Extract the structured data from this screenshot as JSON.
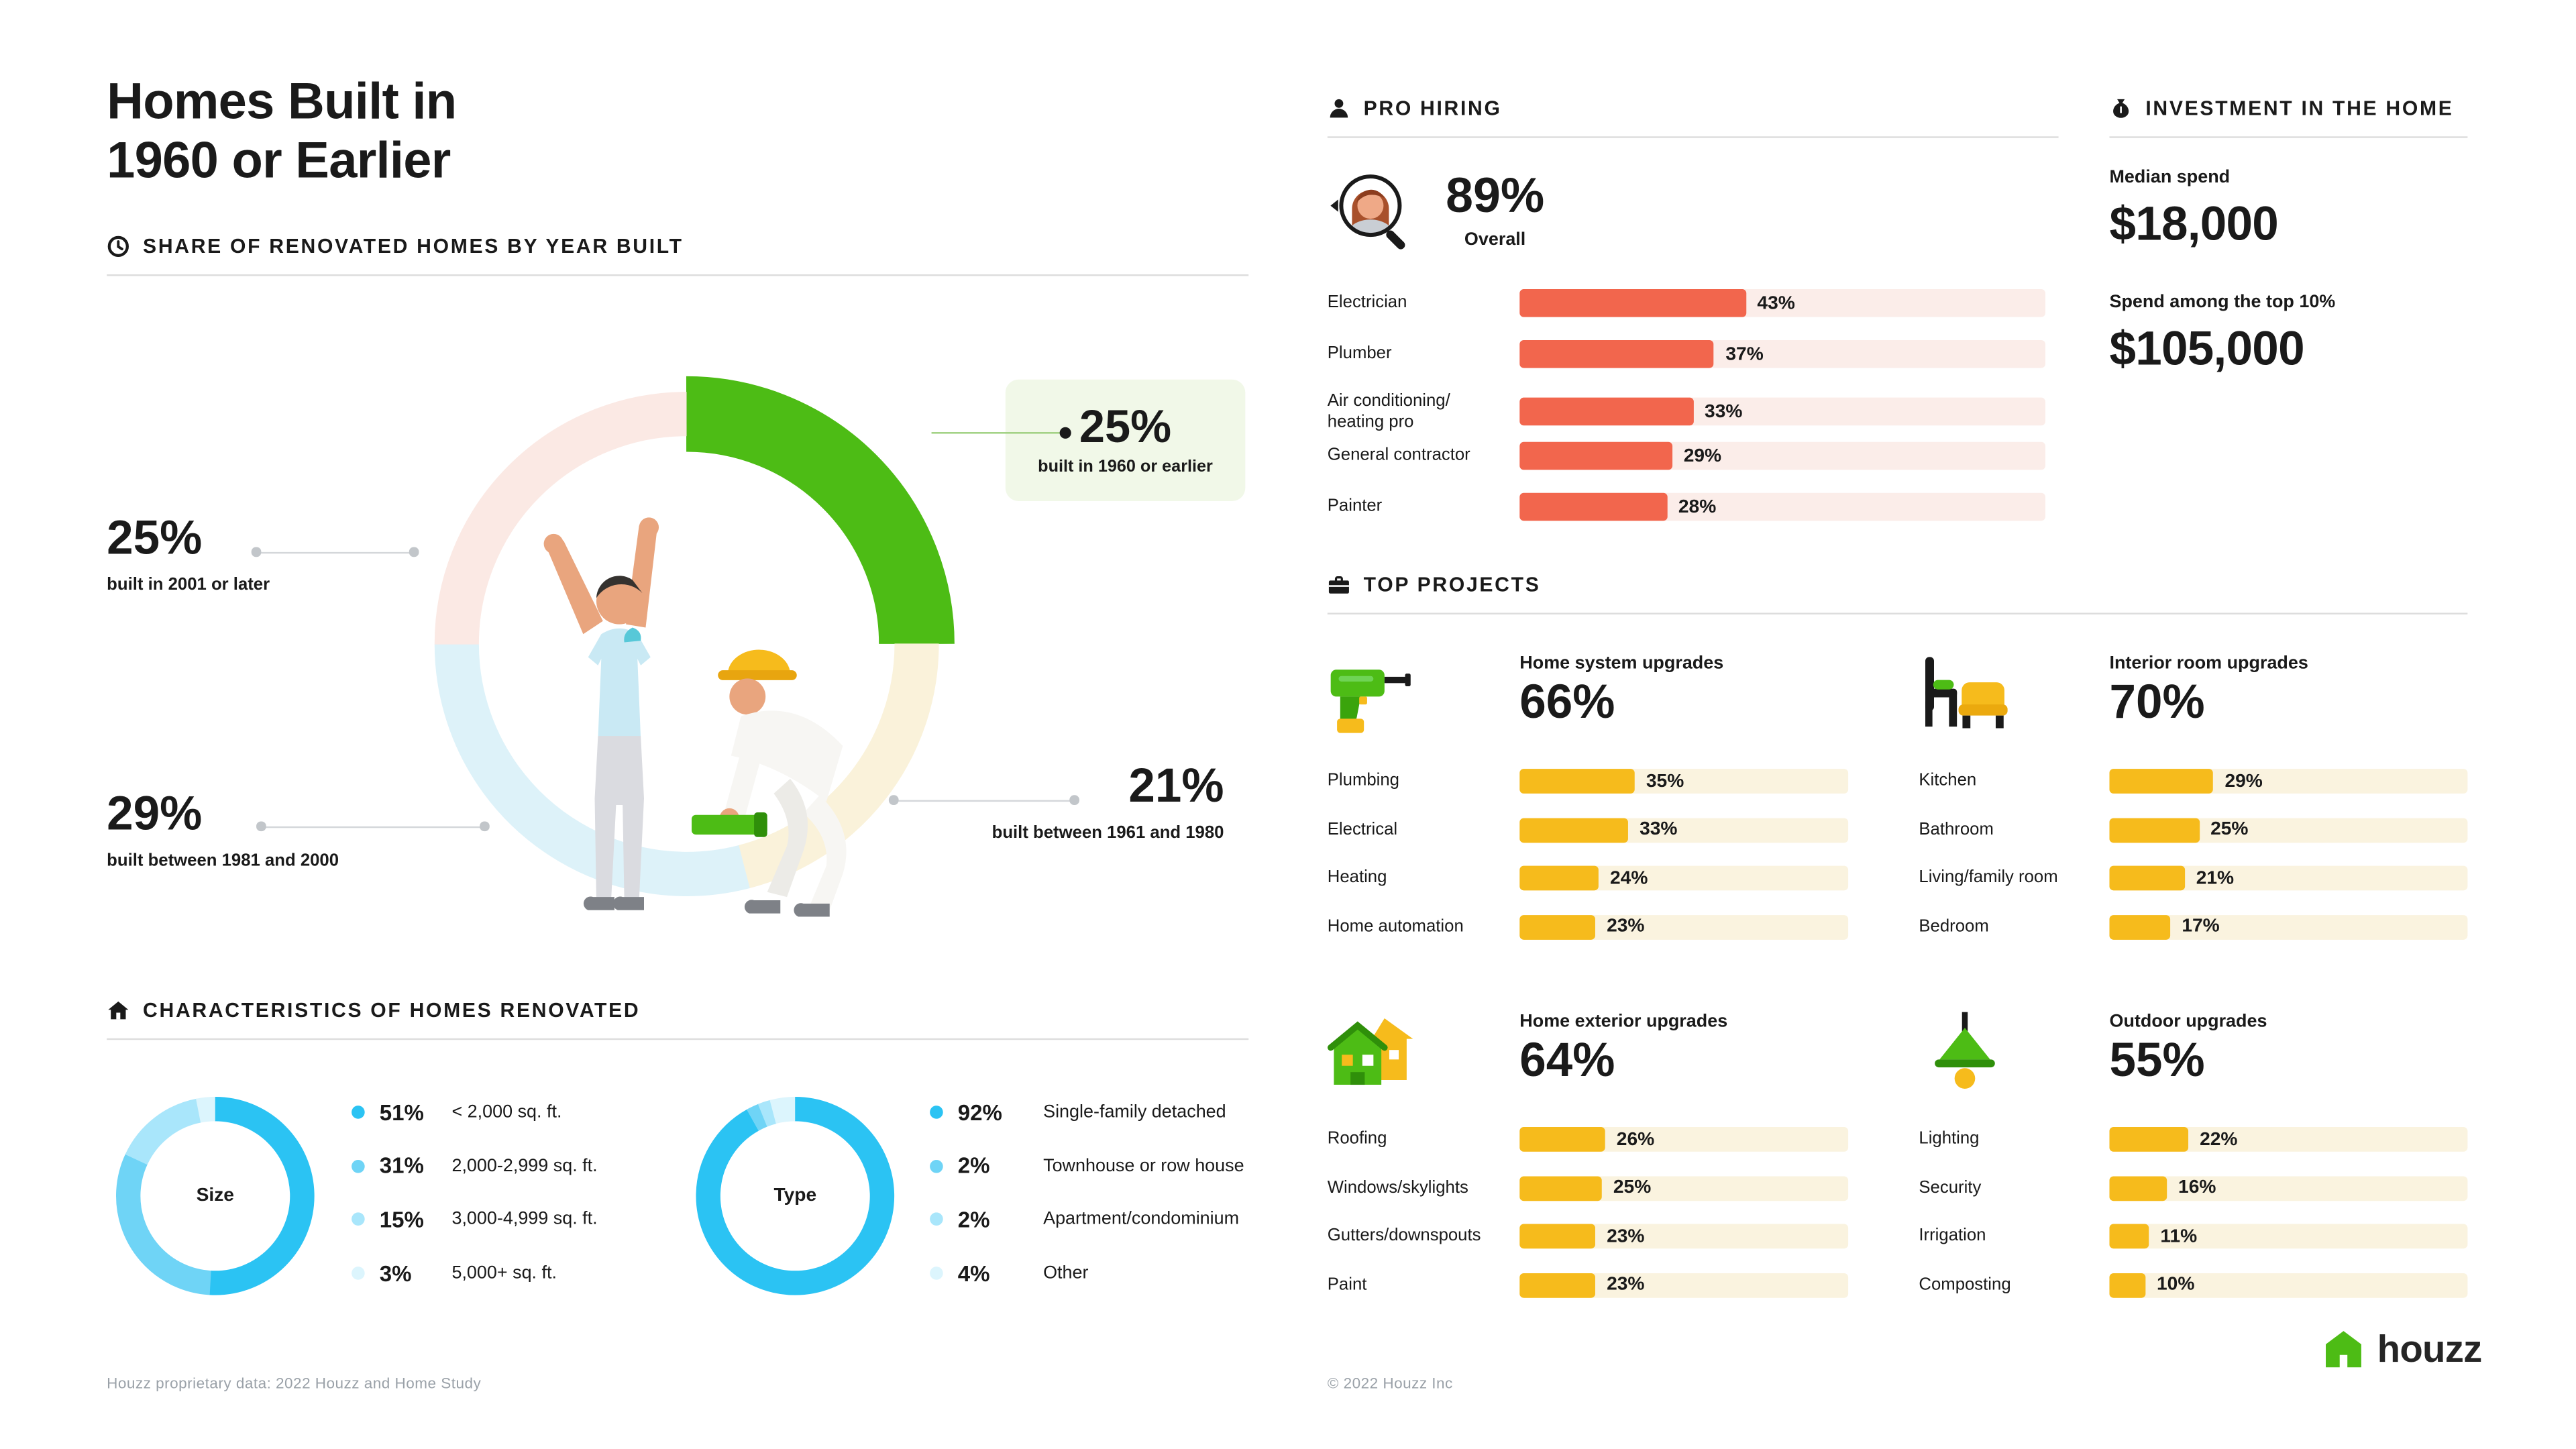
{
  "meta": {
    "title_line1": "Homes Built in",
    "title_line2": "1960 or Earlier",
    "source_note": "Houzz proprietary data: 2022 Houzz and Home Study",
    "copyright_note": "© 2022 Houzz Inc",
    "brand_wordmark": "houzz",
    "colors": {
      "brand_green": "#4DBC15",
      "callout_bg": "#F1F8E8",
      "coral": "#F2664D",
      "coral_track": "#FBEDE9",
      "yellow": "#F6BB1C",
      "yellow_track": "#FAF3DF",
      "cyan": "#2BC3F3",
      "ink": "#1A1A1A",
      "muted_gray": "#9AA1A8",
      "divider": "#DDDDDD"
    }
  },
  "sections": {
    "year_built_header": "SHARE OF RENOVATED HOMES BY YEAR BUILT",
    "characteristics_header": "CHARACTERISTICS OF HOMES RENOVATED",
    "pro_hiring_header": "PRO HIRING",
    "investment_header": "INVESTMENT IN THE HOME",
    "top_projects_header": "TOP PROJECTS"
  },
  "investment": {
    "median_label": "Median spend",
    "median_value": "$18,000",
    "top10_label": "Spend among the top 10%",
    "top10_value": "$105,000"
  },
  "icons": {
    "header_icons": [
      "clock-icon",
      "home-icon",
      "pro-person-icon",
      "investment-money-icon",
      "toolbox-icon"
    ],
    "overall_icon": "magnifier-person-icon",
    "project_icons": [
      "drill-icon",
      "furniture-icon",
      "house-icon",
      "pendant-lamp-icon"
    ],
    "logo_icon": "houzz-house-icon"
  },
  "chart_data": [
    {
      "id": "year_built_donut",
      "type": "donut",
      "title": "Share of renovated homes by year built",
      "unit": "%",
      "segments": [
        {
          "label": "built in 1960 or earlier",
          "value": 25,
          "display": "25%",
          "color": "#4DBC15",
          "emphasis": true
        },
        {
          "label": "built between 1961 and 1980",
          "value": 21,
          "display": "21%",
          "color": "#FAF2DA"
        },
        {
          "label": "built between 1981 and 2000",
          "value": 29,
          "display": "29%",
          "color": "#DDF2F9"
        },
        {
          "label": "built in 2001 or later",
          "value": 25,
          "display": "25%",
          "color": "#FBE9E4"
        }
      ]
    },
    {
      "id": "pro_hiring_bars",
      "type": "bar",
      "orientation": "horizontal",
      "xlim": [
        0,
        100
      ],
      "unit": "%",
      "overall_display": "89%",
      "overall_label": "Overall",
      "bar_color": "#F2664D",
      "track_color": "#FBEDE9",
      "bars": [
        {
          "label": "Electrician",
          "value": 43,
          "display": "43%"
        },
        {
          "label": "Plumber",
          "value": 37,
          "display": "37%"
        },
        {
          "label": "Air conditioning/ heating pro",
          "value": 33,
          "display": "33%"
        },
        {
          "label": "General contractor",
          "value": 29,
          "display": "29%"
        },
        {
          "label": "Painter",
          "value": 28,
          "display": "28%"
        }
      ]
    },
    {
      "id": "size_donut",
      "type": "donut",
      "center_label": "Size",
      "unit": "%",
      "segments": [
        {
          "label": "< 2,000 sq. ft.",
          "value": 51,
          "display": "51%",
          "color": "#2BC3F3"
        },
        {
          "label": "2,000-2,999 sq. ft.",
          "value": 31,
          "display": "31%",
          "color": "#6FD4F6"
        },
        {
          "label": "3,000-4,999 sq. ft.",
          "value": 15,
          "display": "15%",
          "color": "#A9E6FB"
        },
        {
          "label": "5,000+ sq. ft.",
          "value": 3,
          "display": "3%",
          "color": "#DCF5FD"
        }
      ]
    },
    {
      "id": "type_donut",
      "type": "donut",
      "center_label": "Type",
      "unit": "%",
      "segments": [
        {
          "label": "Single-family detached",
          "value": 92,
          "display": "92%",
          "color": "#2BC3F3"
        },
        {
          "label": "Townhouse or row house",
          "value": 2,
          "display": "2%",
          "color": "#6FD4F6"
        },
        {
          "label": "Apartment/condominium",
          "value": 2,
          "display": "2%",
          "color": "#A9E6FB"
        },
        {
          "label": "Other",
          "value": 4,
          "display": "4%",
          "color": "#DCF5FD"
        }
      ]
    },
    {
      "id": "home_system_upgrades",
      "type": "bar",
      "title": "Home system upgrades",
      "headline_value": 66,
      "headline_display": "66%",
      "icon": "drill-icon",
      "bar_color": "#F6BB1C",
      "track_color": "#FAF3DF",
      "bars": [
        {
          "label": "Plumbing",
          "value": 35,
          "display": "35%"
        },
        {
          "label": "Electrical",
          "value": 33,
          "display": "33%"
        },
        {
          "label": "Heating",
          "value": 24,
          "display": "24%"
        },
        {
          "label": "Home automation",
          "value": 23,
          "display": "23%"
        }
      ]
    },
    {
      "id": "interior_room_upgrades",
      "type": "bar",
      "title": "Interior room upgrades",
      "headline_value": 70,
      "headline_display": "70%",
      "icon": "furniture-icon",
      "bar_color": "#F6BB1C",
      "track_color": "#FAF3DF",
      "bars": [
        {
          "label": "Kitchen",
          "value": 29,
          "display": "29%"
        },
        {
          "label": "Bathroom",
          "value": 25,
          "display": "25%"
        },
        {
          "label": "Living/family room",
          "value": 21,
          "display": "21%"
        },
        {
          "label": "Bedroom",
          "value": 17,
          "display": "17%"
        }
      ]
    },
    {
      "id": "home_exterior_upgrades",
      "type": "bar",
      "title": "Home exterior upgrades",
      "headline_value": 64,
      "headline_display": "64%",
      "icon": "house-icon",
      "bar_color": "#F6BB1C",
      "track_color": "#FAF3DF",
      "bars": [
        {
          "label": "Roofing",
          "value": 26,
          "display": "26%"
        },
        {
          "label": "Windows/skylights",
          "value": 25,
          "display": "25%"
        },
        {
          "label": "Gutters/downspouts",
          "value": 23,
          "display": "23%"
        },
        {
          "label": "Paint",
          "value": 23,
          "display": "23%"
        }
      ]
    },
    {
      "id": "outdoor_upgrades",
      "type": "bar",
      "title": "Outdoor upgrades",
      "headline_value": 55,
      "headline_display": "55%",
      "icon": "pendant-lamp-icon",
      "bar_color": "#F6BB1C",
      "track_color": "#FAF3DF",
      "bars": [
        {
          "label": "Lighting",
          "value": 22,
          "display": "22%"
        },
        {
          "label": "Security",
          "value": 16,
          "display": "16%"
        },
        {
          "label": "Irrigation",
          "value": 11,
          "display": "11%"
        },
        {
          "label": "Composting",
          "value": 10,
          "display": "10%"
        }
      ]
    }
  ]
}
